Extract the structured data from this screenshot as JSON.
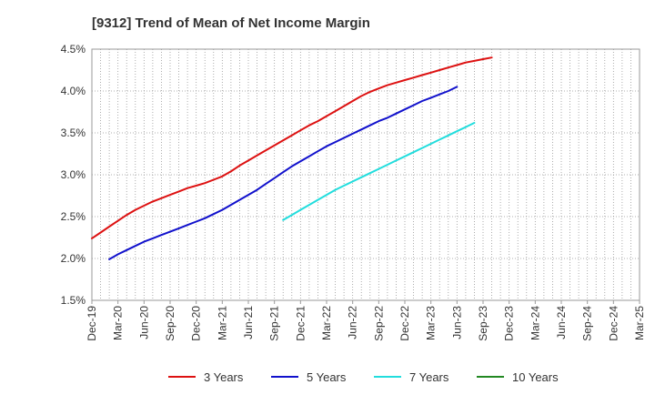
{
  "chart_data": {
    "type": "line",
    "title": "[9312]  Trend of Mean of Net Income Margin",
    "xlabel": "",
    "ylabel": "",
    "x_tick_labels": [
      "Dec-19",
      "Mar-20",
      "Jun-20",
      "Sep-20",
      "Dec-20",
      "Mar-21",
      "Jun-21",
      "Sep-21",
      "Dec-21",
      "Mar-22",
      "Jun-22",
      "Sep-22",
      "Dec-22",
      "Mar-23",
      "Jun-23",
      "Sep-23",
      "Dec-23",
      "Mar-24",
      "Jun-24",
      "Sep-24",
      "Dec-24",
      "Mar-25"
    ],
    "y_tick_labels": [
      "1.5%",
      "2.0%",
      "2.5%",
      "3.0%",
      "3.5%",
      "4.0%",
      "4.5%"
    ],
    "ylim": [
      1.5,
      4.5
    ],
    "y_ticks": [
      1.5,
      2.0,
      2.5,
      3.0,
      3.5,
      4.0,
      4.5
    ],
    "grid": true,
    "legend_position": "bottom",
    "series": [
      {
        "name": "3 Years",
        "color": "#dd1111",
        "values": [
          2.24,
          2.31,
          2.38,
          2.45,
          2.52,
          2.58,
          2.63,
          2.68,
          2.72,
          2.76,
          2.8,
          2.84,
          2.87,
          2.9,
          2.94,
          2.98,
          3.04,
          3.11,
          3.17,
          3.23,
          3.29,
          3.35,
          3.41,
          3.47,
          3.53,
          3.59,
          3.64,
          3.7,
          3.76,
          3.82,
          3.88,
          3.94,
          3.99,
          4.03,
          4.07,
          4.1,
          4.13,
          4.16,
          4.19,
          4.22,
          4.25,
          4.28,
          4.31,
          4.34,
          4.36,
          4.38,
          4.4
        ]
      },
      {
        "name": "5 Years",
        "color": "#1111cc",
        "values": [
          null,
          null,
          1.99,
          2.05,
          2.1,
          2.15,
          2.2,
          2.24,
          2.28,
          2.32,
          2.36,
          2.4,
          2.44,
          2.48,
          2.53,
          2.58,
          2.64,
          2.7,
          2.76,
          2.82,
          2.89,
          2.96,
          3.03,
          3.1,
          3.16,
          3.22,
          3.28,
          3.34,
          3.39,
          3.44,
          3.49,
          3.54,
          3.59,
          3.64,
          3.68,
          3.73,
          3.78,
          3.83,
          3.88,
          3.92,
          3.96,
          4.0,
          4.05
        ]
      },
      {
        "name": "7 Years",
        "color": "#22dddd",
        "values": [
          null,
          null,
          null,
          null,
          null,
          null,
          null,
          null,
          null,
          null,
          null,
          null,
          null,
          null,
          null,
          null,
          null,
          null,
          null,
          null,
          null,
          null,
          2.46,
          2.52,
          2.58,
          2.64,
          2.7,
          2.76,
          2.82,
          2.87,
          2.92,
          2.97,
          3.02,
          3.07,
          3.12,
          3.17,
          3.22,
          3.27,
          3.32,
          3.37,
          3.42,
          3.47,
          3.52,
          3.57,
          3.62
        ]
      },
      {
        "name": "10 Years",
        "color": "#228822",
        "values": []
      }
    ]
  }
}
